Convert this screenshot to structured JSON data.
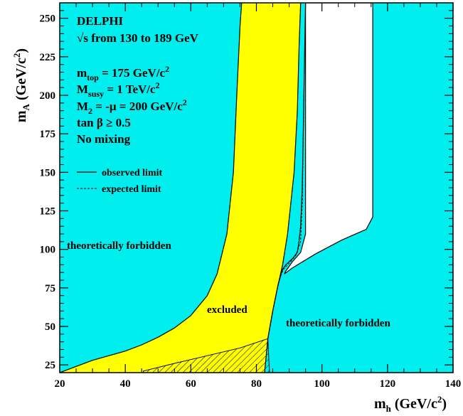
{
  "chart_data": {
    "type": "area",
    "title": "",
    "xlabel": {
      "main": "m",
      "sub": "h",
      "unit": " (GeV/c",
      "sup": "2",
      "close": ")"
    },
    "ylabel": {
      "main": "m",
      "sub": "A",
      "unit": " (GeV/c",
      "sup": "2",
      "close": ")"
    },
    "xlim": [
      20,
      140
    ],
    "ylim": [
      20,
      260
    ],
    "xticks": [
      20,
      40,
      60,
      80,
      100,
      120,
      140
    ],
    "yticks": [
      25,
      50,
      75,
      100,
      125,
      150,
      175,
      200,
      225,
      250
    ],
    "annotations": {
      "experiment": "DELPHI",
      "energy": "√s from 130 to 189 GeV",
      "params": [
        {
          "pre": "m",
          "sub": "top",
          "post": " = 175 GeV/c",
          "sup": "2"
        },
        {
          "pre": "M",
          "sub": "susy",
          "post": " = 1 TeV/c",
          "sup": "2"
        },
        {
          "pre": "M",
          "sub": "2",
          "post": " = -μ = 200 GeV/c",
          "sup": "2"
        },
        {
          "pre": "tan β ≥ 0.5",
          "sub": "",
          "post": "",
          "sup": ""
        },
        {
          "pre": "No mixing",
          "sub": "",
          "post": "",
          "sup": ""
        }
      ],
      "forbidden_left": "theoretically forbidden",
      "forbidden_right": "theoretically forbidden",
      "excluded": "excluded"
    },
    "legend": {
      "placement": "upper-left",
      "entries": [
        {
          "label": "observed limit",
          "style": "solid"
        },
        {
          "label": "expected limit",
          "style": "dashed"
        }
      ]
    },
    "colors": {
      "forbidden": "#00eeee",
      "excluded": "#ffff00",
      "allowed": "#ffffff",
      "line": "#000000"
    },
    "regions": {
      "forbidden_left_boundary": [
        [
          20,
          20
        ],
        [
          25,
          24
        ],
        [
          30,
          28
        ],
        [
          35,
          31
        ],
        [
          40,
          34
        ],
        [
          45,
          38
        ],
        [
          50,
          43
        ],
        [
          55,
          49
        ],
        [
          60,
          57
        ],
        [
          65,
          70
        ],
        [
          68,
          84
        ],
        [
          71,
          110
        ],
        [
          73,
          150
        ],
        [
          74,
          200
        ],
        [
          75,
          245
        ],
        [
          75.5,
          260
        ]
      ],
      "forbidden_right_boundary": [
        [
          82.5,
          20
        ],
        [
          83.5,
          42
        ],
        [
          85,
          60
        ],
        [
          86.5,
          76
        ],
        [
          88,
          90
        ],
        [
          89.5,
          110
        ],
        [
          90.5,
          130
        ],
        [
          91.5,
          150
        ],
        [
          92.5,
          190
        ],
        [
          93,
          230
        ],
        [
          93.5,
          260
        ]
      ],
      "observed_limit": [
        [
          83.5,
          42
        ],
        [
          85,
          60
        ],
        [
          86.5,
          76
        ],
        [
          87.5,
          84
        ],
        [
          88,
          87
        ],
        [
          89,
          90
        ],
        [
          91,
          94
        ],
        [
          92.5,
          98
        ],
        [
          93,
          105
        ],
        [
          93.5,
          115
        ],
        [
          94,
          140
        ],
        [
          94.5,
          200
        ],
        [
          95,
          260
        ]
      ],
      "expected_limit": [
        [
          86.5,
          76
        ],
        [
          87.3,
          82
        ],
        [
          88.2,
          87
        ],
        [
          90,
          91
        ],
        [
          92,
          96
        ],
        [
          93.5,
          105
        ],
        [
          94,
          130
        ],
        [
          94.5,
          200
        ]
      ],
      "allowed_white": [
        [
          95,
          260
        ],
        [
          115.5,
          260
        ],
        [
          115.5,
          121
        ],
        [
          113.5,
          113
        ],
        [
          106,
          106
        ],
        [
          98,
          97
        ],
        [
          91,
          88
        ],
        [
          88.5,
          84
        ],
        [
          89,
          86
        ],
        [
          91,
          92
        ],
        [
          93.5,
          98
        ],
        [
          95,
          110
        ],
        [
          95,
          260
        ]
      ],
      "hatched_expected_gap": [
        [
          45.5,
          21
        ],
        [
          55,
          26
        ],
        [
          65,
          31
        ],
        [
          75,
          36
        ],
        [
          83.5,
          42
        ],
        [
          84,
          20
        ],
        [
          45.5,
          20
        ]
      ]
    }
  }
}
